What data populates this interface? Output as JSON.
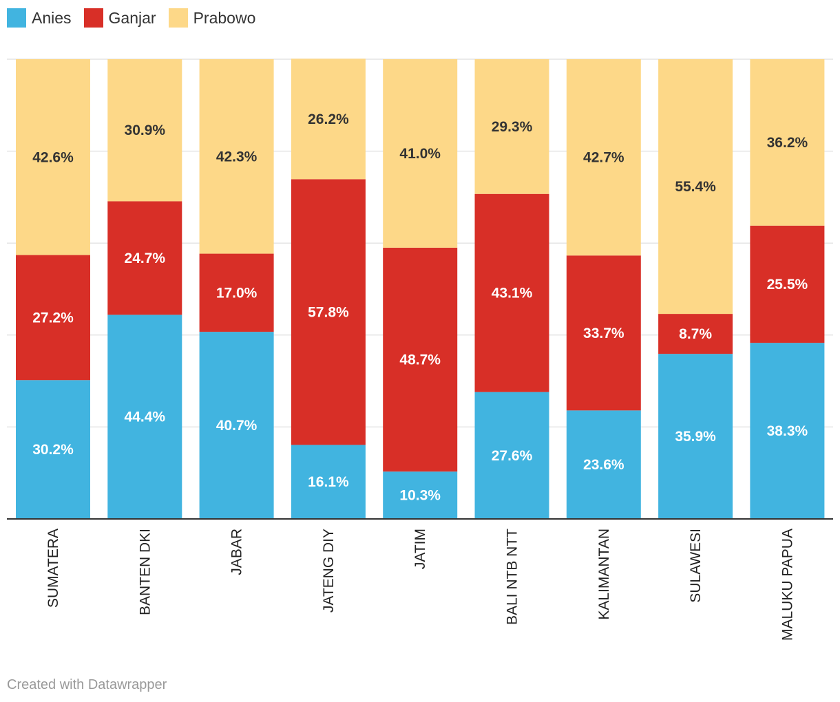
{
  "chart_data": {
    "type": "bar",
    "stacked": true,
    "orientation": "vertical",
    "title": "",
    "xlabel": "",
    "ylabel": "",
    "ylim": [
      0,
      100
    ],
    "grid": true,
    "legend_position": "top-left",
    "value_format": "0.0%",
    "categories": [
      "SUMATERA",
      "BANTEN DKI",
      "JABAR",
      "JATENG DIY",
      "JATIM",
      "BALI NTB NTT",
      "KALIMANTAN",
      "SULAWESI",
      "MALUKU PAPUA"
    ],
    "series": [
      {
        "name": "Anies",
        "color": "#41b4e0",
        "label_color": "#ffffff",
        "values": [
          30.2,
          44.4,
          40.7,
          16.1,
          10.3,
          27.6,
          23.6,
          35.9,
          38.3
        ]
      },
      {
        "name": "Ganjar",
        "color": "#d82f27",
        "label_color": "#ffffff",
        "values": [
          27.2,
          24.7,
          17.0,
          57.8,
          48.7,
          43.1,
          33.7,
          8.7,
          25.5
        ]
      },
      {
        "name": "Prabowo",
        "color": "#fdd888",
        "label_color": "#333333",
        "values": [
          42.6,
          30.9,
          42.3,
          26.2,
          41.0,
          29.3,
          42.7,
          55.4,
          36.2
        ]
      }
    ]
  },
  "footer": {
    "credit": "Created with Datawrapper"
  }
}
